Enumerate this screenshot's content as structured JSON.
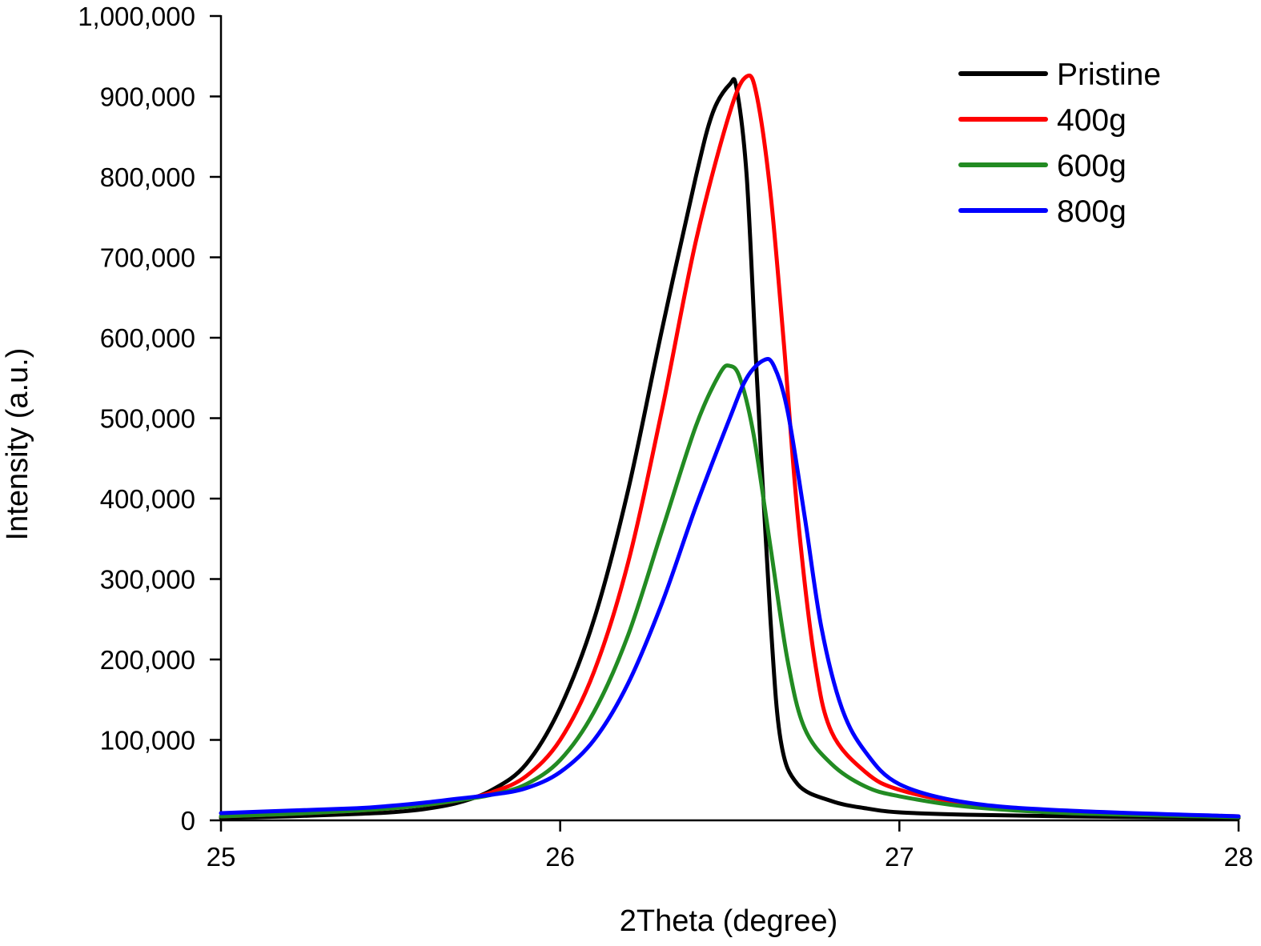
{
  "chart_data": {
    "type": "line",
    "title": "",
    "xlabel": "2Theta (degree)",
    "ylabel": "Intensity (a.u.)",
    "xlim": [
      25,
      28
    ],
    "ylim": [
      0,
      1000000
    ],
    "x_ticks": [
      25,
      26,
      27,
      28
    ],
    "x_tick_labels": [
      "25",
      "26",
      "27",
      "28"
    ],
    "y_ticks": [
      0,
      100000,
      200000,
      300000,
      400000,
      500000,
      600000,
      700000,
      800000,
      900000,
      1000000
    ],
    "y_tick_labels": [
      "0",
      "100,000",
      "200,000",
      "300,000",
      "400,000",
      "500,000",
      "600,000",
      "700,000",
      "800,000",
      "900,000",
      "1,000,000"
    ],
    "grid": false,
    "legend_position": "top-right",
    "series": [
      {
        "name": "Pristine",
        "color": "#000000",
        "points": [
          [
            25.0,
            3000
          ],
          [
            25.2,
            5000
          ],
          [
            25.4,
            8000
          ],
          [
            25.5,
            10000
          ],
          [
            25.6,
            14000
          ],
          [
            25.7,
            22000
          ],
          [
            25.8,
            38000
          ],
          [
            25.9,
            70000
          ],
          [
            26.0,
            140000
          ],
          [
            26.1,
            250000
          ],
          [
            26.2,
            410000
          ],
          [
            26.3,
            610000
          ],
          [
            26.4,
            800000
          ],
          [
            26.45,
            880000
          ],
          [
            26.5,
            915000
          ],
          [
            26.52,
            910000
          ],
          [
            26.55,
            800000
          ],
          [
            26.58,
            550000
          ],
          [
            26.62,
            250000
          ],
          [
            26.65,
            100000
          ],
          [
            26.7,
            45000
          ],
          [
            26.8,
            24000
          ],
          [
            26.9,
            15000
          ],
          [
            27.0,
            10000
          ],
          [
            27.2,
            7000
          ],
          [
            27.5,
            5000
          ],
          [
            28.0,
            3000
          ]
        ]
      },
      {
        "name": "400g",
        "color": "#ff0000",
        "points": [
          [
            25.0,
            5000
          ],
          [
            25.2,
            8000
          ],
          [
            25.4,
            12000
          ],
          [
            25.5,
            15000
          ],
          [
            25.6,
            19000
          ],
          [
            25.7,
            25000
          ],
          [
            25.8,
            35000
          ],
          [
            25.9,
            55000
          ],
          [
            26.0,
            100000
          ],
          [
            26.1,
            185000
          ],
          [
            26.2,
            320000
          ],
          [
            26.3,
            510000
          ],
          [
            26.4,
            720000
          ],
          [
            26.5,
            880000
          ],
          [
            26.55,
            925000
          ],
          [
            26.58,
            900000
          ],
          [
            26.62,
            780000
          ],
          [
            26.66,
            590000
          ],
          [
            26.7,
            380000
          ],
          [
            26.75,
            200000
          ],
          [
            26.8,
            110000
          ],
          [
            26.9,
            60000
          ],
          [
            27.0,
            38000
          ],
          [
            27.2,
            21000
          ],
          [
            27.5,
            11000
          ],
          [
            28.0,
            5000
          ]
        ]
      },
      {
        "name": "600g",
        "color": "#228b22",
        "points": [
          [
            25.0,
            5000
          ],
          [
            25.2,
            8000
          ],
          [
            25.4,
            12000
          ],
          [
            25.5,
            15000
          ],
          [
            25.6,
            19000
          ],
          [
            25.7,
            25000
          ],
          [
            25.8,
            32000
          ],
          [
            25.9,
            45000
          ],
          [
            26.0,
            75000
          ],
          [
            26.1,
            135000
          ],
          [
            26.2,
            230000
          ],
          [
            26.3,
            360000
          ],
          [
            26.4,
            490000
          ],
          [
            26.47,
            555000
          ],
          [
            26.5,
            565000
          ],
          [
            26.53,
            550000
          ],
          [
            26.57,
            480000
          ],
          [
            26.62,
            340000
          ],
          [
            26.67,
            200000
          ],
          [
            26.72,
            115000
          ],
          [
            26.8,
            70000
          ],
          [
            26.9,
            42000
          ],
          [
            27.0,
            30000
          ],
          [
            27.2,
            17000
          ],
          [
            27.5,
            9000
          ],
          [
            28.0,
            4000
          ]
        ]
      },
      {
        "name": "800g",
        "color": "#0000ff",
        "points": [
          [
            25.0,
            9000
          ],
          [
            25.2,
            12000
          ],
          [
            25.4,
            15000
          ],
          [
            25.5,
            18000
          ],
          [
            25.6,
            22000
          ],
          [
            25.7,
            27000
          ],
          [
            25.8,
            32000
          ],
          [
            25.9,
            40000
          ],
          [
            26.0,
            60000
          ],
          [
            26.1,
            100000
          ],
          [
            26.2,
            170000
          ],
          [
            26.3,
            270000
          ],
          [
            26.4,
            390000
          ],
          [
            26.5,
            500000
          ],
          [
            26.55,
            550000
          ],
          [
            26.6,
            572000
          ],
          [
            26.63,
            565000
          ],
          [
            26.67,
            510000
          ],
          [
            26.72,
            380000
          ],
          [
            26.77,
            240000
          ],
          [
            26.83,
            140000
          ],
          [
            26.9,
            85000
          ],
          [
            27.0,
            45000
          ],
          [
            27.2,
            22000
          ],
          [
            27.5,
            12000
          ],
          [
            28.0,
            5000
          ]
        ]
      }
    ]
  }
}
